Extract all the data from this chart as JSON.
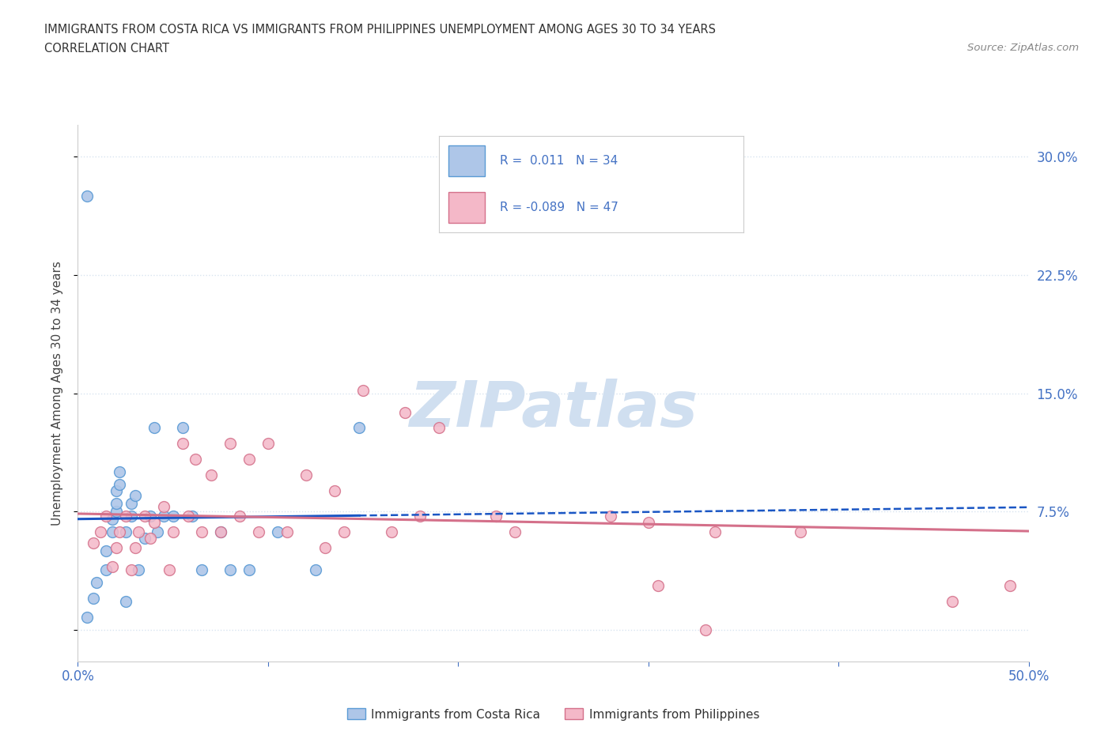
{
  "title_line1": "IMMIGRANTS FROM COSTA RICA VS IMMIGRANTS FROM PHILIPPINES UNEMPLOYMENT AMONG AGES 30 TO 34 YEARS",
  "title_line2": "CORRELATION CHART",
  "source": "Source: ZipAtlas.com",
  "ylabel": "Unemployment Among Ages 30 to 34 years",
  "xlim": [
    0.0,
    0.5
  ],
  "ylim": [
    -0.02,
    0.32
  ],
  "ytick_positions": [
    0.0,
    0.075,
    0.15,
    0.225,
    0.3
  ],
  "ytick_labels_right": [
    "",
    "7.5%",
    "15.0%",
    "22.5%",
    "30.0%"
  ],
  "costa_rica_color": "#aec6e8",
  "costa_rica_edge": "#5b9bd5",
  "philippines_color": "#f4b8c8",
  "philippines_edge": "#d4708a",
  "trend_costa_rica_color": "#1a56c4",
  "trend_philippines_color": "#d4708a",
  "R_costa_rica": 0.011,
  "N_costa_rica": 34,
  "R_philippines": -0.089,
  "N_philippines": 47,
  "watermark": "ZIPatlas",
  "watermark_color": "#d0dff0",
  "costa_rica_x": [
    0.005,
    0.005,
    0.008,
    0.01,
    0.015,
    0.015,
    0.018,
    0.018,
    0.02,
    0.02,
    0.02,
    0.022,
    0.022,
    0.025,
    0.025,
    0.028,
    0.028,
    0.03,
    0.032,
    0.035,
    0.038,
    0.04,
    0.042,
    0.045,
    0.05,
    0.055,
    0.06,
    0.065,
    0.075,
    0.08,
    0.09,
    0.105,
    0.125,
    0.148
  ],
  "costa_rica_y": [
    0.275,
    0.008,
    0.02,
    0.03,
    0.038,
    0.05,
    0.062,
    0.07,
    0.075,
    0.08,
    0.088,
    0.092,
    0.1,
    0.018,
    0.062,
    0.072,
    0.08,
    0.085,
    0.038,
    0.058,
    0.072,
    0.128,
    0.062,
    0.072,
    0.072,
    0.128,
    0.072,
    0.038,
    0.062,
    0.038,
    0.038,
    0.062,
    0.038,
    0.128
  ],
  "philippines_x": [
    0.008,
    0.012,
    0.015,
    0.018,
    0.02,
    0.022,
    0.025,
    0.028,
    0.03,
    0.032,
    0.035,
    0.038,
    0.04,
    0.045,
    0.048,
    0.05,
    0.055,
    0.058,
    0.062,
    0.065,
    0.07,
    0.075,
    0.08,
    0.085,
    0.09,
    0.095,
    0.1,
    0.11,
    0.12,
    0.13,
    0.135,
    0.14,
    0.15,
    0.165,
    0.172,
    0.18,
    0.19,
    0.22,
    0.23,
    0.28,
    0.3,
    0.305,
    0.33,
    0.335,
    0.38,
    0.46,
    0.49
  ],
  "philippines_y": [
    0.055,
    0.062,
    0.072,
    0.04,
    0.052,
    0.062,
    0.072,
    0.038,
    0.052,
    0.062,
    0.072,
    0.058,
    0.068,
    0.078,
    0.038,
    0.062,
    0.118,
    0.072,
    0.108,
    0.062,
    0.098,
    0.062,
    0.118,
    0.072,
    0.108,
    0.062,
    0.118,
    0.062,
    0.098,
    0.052,
    0.088,
    0.062,
    0.152,
    0.062,
    0.138,
    0.072,
    0.128,
    0.072,
    0.062,
    0.072,
    0.068,
    0.028,
    0.0,
    0.062,
    0.062,
    0.018,
    0.028
  ],
  "grid_color": "#d8e4f0",
  "grid_style": "dotted",
  "background_color": "#ffffff",
  "axis_color": "#4472c4",
  "bottom_legend_cr": "Immigrants from Costa Rica",
  "bottom_legend_ph": "Immigrants from Philippines"
}
